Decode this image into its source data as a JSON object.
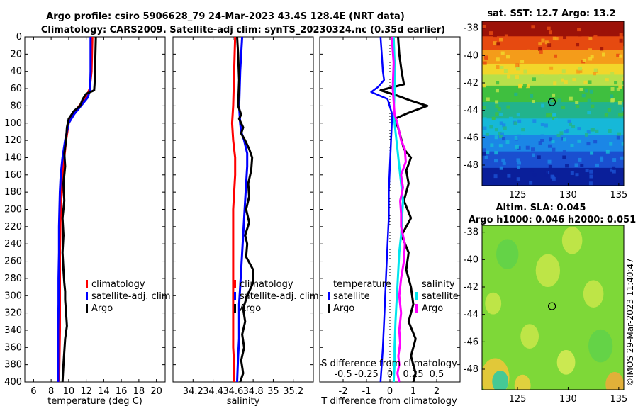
{
  "header": {
    "line1": "Argo profile: csiro 5906628_79 24-Mar-2023 43.4S 128.4E (NRT data)",
    "line2": "Climatology: CARS2009. Satellite-adj clim: synTS_20230324.nc (0.35d earlier)"
  },
  "watermark": "©IMOS 29-Mar-2023 11:40:47",
  "colors": {
    "climatology": "#ff0000",
    "satellite": "#0000ff",
    "argo": "#000000",
    "salinity_satellite": "#00e5ee",
    "salinity_argo": "#ff00ff"
  },
  "chart_data": [
    {
      "type": "line",
      "id": "temperature",
      "xlabel": "temperature (deg C)",
      "ylabel": "",
      "xlim": [
        5,
        21
      ],
      "ylim": [
        400,
        0
      ],
      "xticks": [
        6,
        8,
        10,
        12,
        14,
        16,
        18,
        20
      ],
      "yticks": [
        0,
        20,
        40,
        60,
        80,
        100,
        120,
        140,
        160,
        180,
        200,
        220,
        240,
        260,
        280,
        300,
        320,
        340,
        360,
        380,
        400
      ],
      "legend": [
        "climatology",
        "satellite-adj. clim",
        "Argo"
      ],
      "legend_position": "bottom-right",
      "series": [
        {
          "name": "climatology",
          "color": "#ff0000",
          "x": [
            12.7,
            12.6,
            12.4,
            12.0,
            11.2,
            10.5,
            10.0,
            9.7,
            9.5,
            9.3,
            9.2,
            9.1,
            9.05,
            9.0,
            9.0,
            9.0,
            9.0,
            8.95,
            8.9
          ],
          "depth": [
            0,
            40,
            60,
            70,
            80,
            90,
            100,
            120,
            140,
            160,
            180,
            200,
            220,
            250,
            280,
            310,
            340,
            370,
            400
          ]
        },
        {
          "name": "satellite-adj. clim",
          "color": "#0000ff",
          "x": [
            12.5,
            12.5,
            12.45,
            12.2,
            11.4,
            10.6,
            10.0,
            9.6,
            9.3,
            9.1,
            9.0,
            8.95,
            8.9,
            8.9,
            8.85,
            8.85,
            8.8,
            8.8,
            8.8
          ],
          "depth": [
            0,
            40,
            60,
            70,
            80,
            90,
            100,
            120,
            140,
            160,
            180,
            200,
            220,
            250,
            280,
            310,
            340,
            370,
            400
          ]
        },
        {
          "name": "Argo",
          "color": "#000000",
          "x": [
            13.1,
            13.05,
            13.0,
            12.95,
            12.9,
            12.0,
            11.6,
            11.3,
            10.6,
            10.0,
            9.8,
            9.7,
            9.5,
            9.6,
            9.4,
            9.5,
            9.3,
            9.4,
            9.3,
            9.4,
            9.5,
            9.6,
            9.6,
            9.7,
            9.8,
            9.6,
            9.5,
            9.4,
            9.3
          ],
          "depth": [
            0,
            20,
            40,
            55,
            62,
            66,
            72,
            80,
            86,
            95,
            105,
            120,
            135,
            150,
            170,
            190,
            210,
            230,
            250,
            270,
            285,
            295,
            305,
            320,
            335,
            350,
            365,
            380,
            400
          ]
        }
      ]
    },
    {
      "type": "line",
      "id": "salinity",
      "xlabel": "salinity",
      "ylabel": "",
      "xlim": [
        34.0,
        35.4
      ],
      "ylim": [
        400,
        0
      ],
      "xticks": [
        34.2,
        34.4,
        34.6,
        34.8,
        35,
        35.2
      ],
      "legend": [
        "climatology",
        "satellite-adj. clim",
        "Argo"
      ],
      "legend_position": "bottom-right",
      "series": [
        {
          "name": "climatology",
          "color": "#ff0000",
          "x": [
            34.62,
            34.61,
            34.6,
            34.59,
            34.6,
            34.62,
            34.62,
            34.61,
            34.6,
            34.6,
            34.6,
            34.6,
            34.6,
            34.6,
            34.6,
            34.6,
            34.6,
            34.61,
            34.61
          ],
          "depth": [
            0,
            40,
            80,
            100,
            120,
            140,
            160,
            180,
            200,
            220,
            240,
            260,
            280,
            300,
            320,
            340,
            360,
            380,
            400
          ]
        },
        {
          "name": "satellite-adj. clim",
          "color": "#0000ff",
          "x": [
            34.69,
            34.67,
            34.66,
            34.67,
            34.68,
            34.71,
            34.74,
            34.74,
            34.73,
            34.72,
            34.71,
            34.7,
            34.69,
            34.68,
            34.67,
            34.66,
            34.66,
            34.66,
            34.65,
            34.64
          ],
          "depth": [
            0,
            40,
            80,
            100,
            110,
            120,
            135,
            150,
            170,
            190,
            210,
            230,
            250,
            270,
            290,
            310,
            330,
            350,
            370,
            400
          ]
        },
        {
          "name": "Argo",
          "color": "#000000",
          "x": [
            34.64,
            34.65,
            34.66,
            34.65,
            34.68,
            34.66,
            34.7,
            34.68,
            34.72,
            34.76,
            34.79,
            34.78,
            34.75,
            34.76,
            34.73,
            34.76,
            34.72,
            34.74,
            34.73,
            34.8,
            34.8,
            34.74,
            34.7,
            34.72,
            34.69,
            34.71,
            34.68,
            34.7,
            34.67
          ],
          "depth": [
            0,
            20,
            50,
            80,
            90,
            95,
            105,
            112,
            120,
            130,
            140,
            155,
            170,
            185,
            200,
            215,
            230,
            240,
            255,
            270,
            285,
            300,
            315,
            330,
            345,
            360,
            375,
            390,
            400
          ]
        }
      ]
    },
    {
      "type": "line",
      "id": "difference",
      "xlabel": "T difference from climatology",
      "xlabel_top": "S difference from climatology",
      "xlim": [
        -3,
        3
      ],
      "ylim": [
        400,
        0
      ],
      "xticks": [
        -2,
        -1,
        0,
        1,
        2
      ],
      "xticks_salinity": [
        -0.5,
        -0.25,
        0,
        0.25,
        0.5
      ],
      "legend_temperature_title": "temperature",
      "legend_salinity_title": "salinity",
      "legend_temperature": [
        "satellite",
        "Argo"
      ],
      "legend_salinity": [
        "satellite",
        "Argo"
      ],
      "legend_position": "bottom",
      "series": [
        {
          "name": "T satellite",
          "color": "#0000ff",
          "x": [
            -0.4,
            -0.35,
            -0.3,
            -0.25,
            -0.5,
            -0.8,
            -0.1,
            0.1,
            0.05,
            0.0,
            -0.05,
            -0.05,
            -0.1,
            -0.15,
            -0.2,
            -0.25,
            -0.3,
            -0.35,
            -0.4
          ],
          "depth": [
            0,
            20,
            40,
            50,
            58,
            64,
            72,
            90,
            120,
            150,
            180,
            210,
            240,
            270,
            300,
            330,
            360,
            380,
            400
          ]
        },
        {
          "name": "T Argo",
          "color": "#000000",
          "x": [
            0.35,
            0.4,
            0.5,
            0.6,
            -0.4,
            0.3,
            0.9,
            1.6,
            0.8,
            0.2,
            0.35,
            0.5,
            0.6,
            0.9,
            0.7,
            0.8,
            0.6,
            0.9,
            0.5,
            0.8,
            0.7,
            0.9,
            1.0,
            0.8,
            1.1,
            0.9,
            1.1,
            1.0
          ],
          "depth": [
            0,
            20,
            40,
            55,
            62,
            68,
            74,
            80,
            88,
            95,
            105,
            120,
            130,
            140,
            155,
            170,
            190,
            210,
            230,
            250,
            270,
            290,
            310,
            330,
            350,
            370,
            390,
            400
          ]
        },
        {
          "name": "S satellite",
          "color": "#00e5ee",
          "x": [
            0.04,
            0.05,
            0.05,
            0.04,
            0.06,
            0.08,
            0.1,
            0.12,
            0.14,
            0.13,
            0.12,
            0.1,
            0.09,
            0.08,
            0.07,
            0.06,
            0.05,
            0.05,
            0.04
          ],
          "depth": [
            0,
            30,
            60,
            90,
            110,
            130,
            150,
            170,
            190,
            210,
            230,
            250,
            270,
            290,
            310,
            330,
            360,
            380,
            400
          ]
        },
        {
          "name": "S Argo",
          "color": "#ff00ff",
          "x": [
            0.02,
            0.04,
            0.03,
            0.05,
            0.08,
            0.1,
            0.12,
            0.16,
            0.17,
            0.12,
            0.14,
            0.11,
            0.12,
            0.12,
            0.16,
            0.15,
            0.12,
            0.1,
            0.12,
            0.1,
            0.11,
            0.09,
            0.1,
            0.08,
            0.1
          ],
          "depth": [
            0,
            30,
            60,
            90,
            100,
            110,
            120,
            130,
            145,
            160,
            175,
            190,
            205,
            220,
            240,
            260,
            280,
            300,
            320,
            340,
            355,
            370,
            380,
            390,
            400
          ]
        }
      ]
    },
    {
      "type": "heatmap",
      "id": "sst-map",
      "title": "sat. SST: 12.7 Argo: 13.2",
      "xlim": [
        121.5,
        135.5
      ],
      "ylim": [
        -49.5,
        -37.5
      ],
      "xticks": [
        125,
        130,
        135
      ],
      "yticks": [
        -38,
        -40,
        -42,
        -44,
        -46,
        -48
      ],
      "marker": {
        "lon": 128.4,
        "lat": -43.4
      },
      "bands": [
        {
          "lat_top": -37.5,
          "lat_bottom": -38.6,
          "color": "#9c1208"
        },
        {
          "lat_top": -38.6,
          "lat_bottom": -39.6,
          "color": "#e64a10"
        },
        {
          "lat_top": -39.6,
          "lat_bottom": -40.6,
          "color": "#f49c1a"
        },
        {
          "lat_top": -40.6,
          "lat_bottom": -41.4,
          "color": "#f2d62a"
        },
        {
          "lat_top": -41.4,
          "lat_bottom": -42.2,
          "color": "#b8e04a"
        },
        {
          "lat_top": -42.2,
          "lat_bottom": -43.4,
          "color": "#3fbf3f"
        },
        {
          "lat_top": -43.4,
          "lat_bottom": -44.6,
          "color": "#22b38c"
        },
        {
          "lat_top": -44.6,
          "lat_bottom": -45.8,
          "color": "#16b8d8"
        },
        {
          "lat_top": -45.8,
          "lat_bottom": -47.0,
          "color": "#1b86e6"
        },
        {
          "lat_top": -47.0,
          "lat_bottom": -48.2,
          "color": "#1a4fd0"
        },
        {
          "lat_top": -48.2,
          "lat_bottom": -49.5,
          "color": "#0a1f9a"
        }
      ]
    },
    {
      "type": "heatmap",
      "id": "sla-map",
      "title_line1": "Altim. SLA: 0.045",
      "title_line2": "Argo h1000: 0.046 h2000: 0.051",
      "xlim": [
        121.5,
        135.5
      ],
      "ylim": [
        -49.5,
        -37.5
      ],
      "xticks": [
        125,
        130,
        135
      ],
      "yticks": [
        -38,
        -40,
        -42,
        -44,
        -46,
        -48
      ],
      "marker": {
        "lon": 128.4,
        "lat": -43.4
      },
      "base_color": "#7ed838",
      "blobs": [
        {
          "lon": 122.8,
          "lat": -48.6,
          "r": 1.4,
          "color": "#f2c63a"
        },
        {
          "lon": 123.3,
          "lat": -48.9,
          "r": 0.8,
          "color": "#29c9a6"
        },
        {
          "lon": 125.5,
          "lat": -49.2,
          "r": 0.8,
          "color": "#f0d040"
        },
        {
          "lon": 134.6,
          "lat": -49.1,
          "r": 0.9,
          "color": "#f2a93a"
        },
        {
          "lon": 128.0,
          "lat": -40.8,
          "r": 1.2,
          "color": "#c9e84a"
        },
        {
          "lon": 124.0,
          "lat": -39.6,
          "r": 1.1,
          "color": "#5fd24a"
        },
        {
          "lon": 132.5,
          "lat": -42.5,
          "r": 1.0,
          "color": "#c9e84a"
        },
        {
          "lon": 133.2,
          "lat": -46.3,
          "r": 1.2,
          "color": "#5fd24a"
        },
        {
          "lon": 126.2,
          "lat": -45.6,
          "r": 0.9,
          "color": "#c9e84a"
        },
        {
          "lon": 130.4,
          "lat": -38.6,
          "r": 1.0,
          "color": "#c9e84a"
        },
        {
          "lon": 122.6,
          "lat": -43.2,
          "r": 0.8,
          "color": "#c9e84a"
        },
        {
          "lon": 129.8,
          "lat": -47.5,
          "r": 0.9,
          "color": "#d8ec56"
        }
      ]
    }
  ]
}
